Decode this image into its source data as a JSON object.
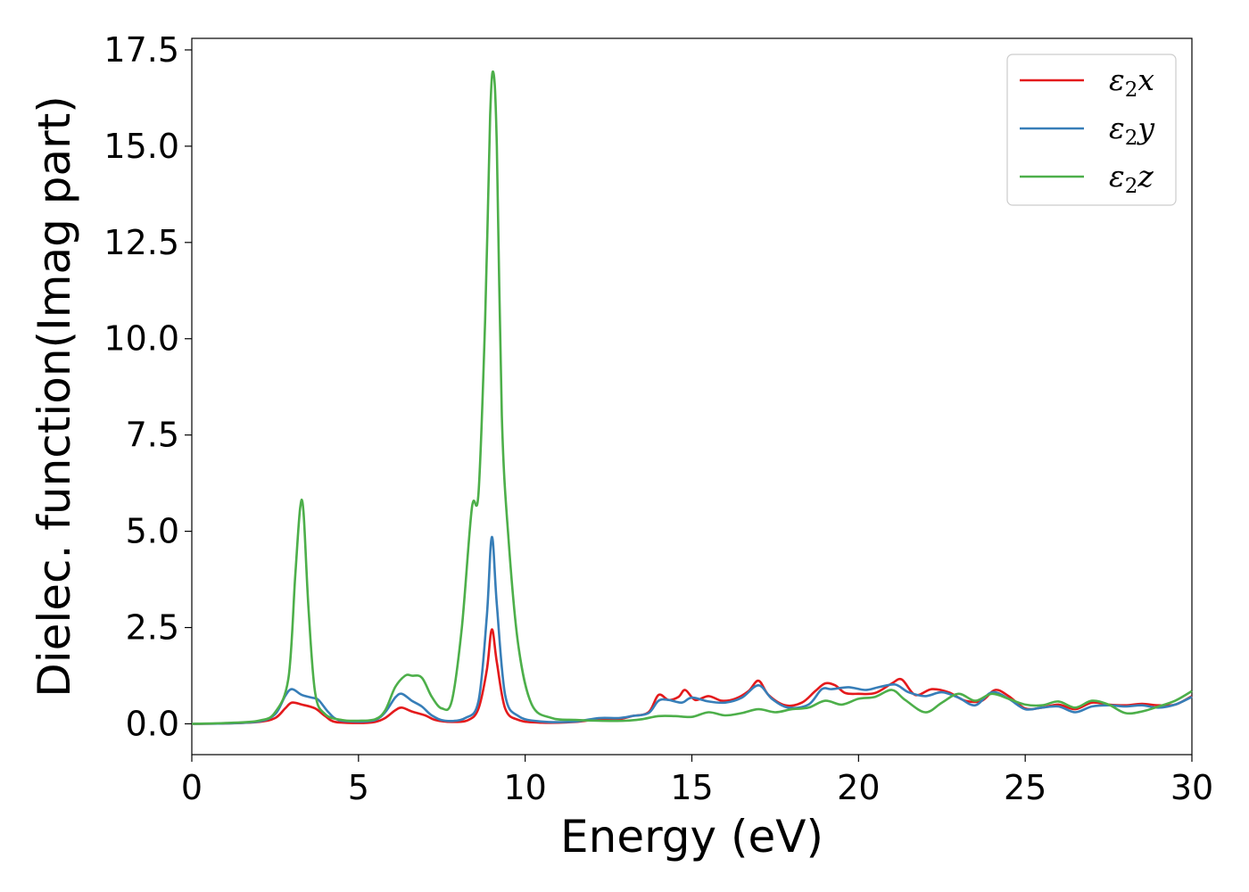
{
  "chart_data": {
    "type": "line",
    "title": "",
    "xlabel": "Energy (eV)",
    "ylabel": "Dielec. function(Imag part)",
    "xlim": [
      0,
      30
    ],
    "ylim": [
      -0.8,
      17.8
    ],
    "xticks": [
      0,
      5,
      10,
      15,
      20,
      25,
      30
    ],
    "xtick_labels": [
      "0",
      "5",
      "10",
      "15",
      "20",
      "25",
      "30"
    ],
    "yticks": [
      0,
      2.5,
      5,
      7.5,
      10,
      12.5,
      15,
      17.5
    ],
    "ytick_labels": [
      "0.0",
      "2.5",
      "5.0",
      "7.5",
      "10.0",
      "12.5",
      "15.0",
      "17.5"
    ],
    "grid": false,
    "legend_position": "top-right",
    "series": [
      {
        "name": "ε₂x",
        "sub": "2",
        "axis": "x",
        "color": "#e41a1c",
        "points": [
          [
            0,
            0
          ],
          [
            1,
            0.01
          ],
          [
            2,
            0.05
          ],
          [
            2.5,
            0.15
          ],
          [
            2.8,
            0.4
          ],
          [
            3.0,
            0.55
          ],
          [
            3.3,
            0.5
          ],
          [
            3.7,
            0.4
          ],
          [
            4.0,
            0.2
          ],
          [
            4.3,
            0.05
          ],
          [
            5,
            0.02
          ],
          [
            5.5,
            0.05
          ],
          [
            5.8,
            0.15
          ],
          [
            6.1,
            0.35
          ],
          [
            6.3,
            0.42
          ],
          [
            6.6,
            0.32
          ],
          [
            7.0,
            0.22
          ],
          [
            7.3,
            0.1
          ],
          [
            7.8,
            0.05
          ],
          [
            8.3,
            0.1
          ],
          [
            8.6,
            0.4
          ],
          [
            8.85,
            1.4
          ],
          [
            9.0,
            2.45
          ],
          [
            9.15,
            1.6
          ],
          [
            9.4,
            0.4
          ],
          [
            9.8,
            0.1
          ],
          [
            10.5,
            0.03
          ],
          [
            11.5,
            0.05
          ],
          [
            12.2,
            0.12
          ],
          [
            12.8,
            0.12
          ],
          [
            13.2,
            0.2
          ],
          [
            13.7,
            0.3
          ],
          [
            14.0,
            0.75
          ],
          [
            14.3,
            0.62
          ],
          [
            14.6,
            0.7
          ],
          [
            14.8,
            0.88
          ],
          [
            15.1,
            0.62
          ],
          [
            15.5,
            0.72
          ],
          [
            15.9,
            0.6
          ],
          [
            16.3,
            0.65
          ],
          [
            16.7,
            0.85
          ],
          [
            17.0,
            1.12
          ],
          [
            17.3,
            0.75
          ],
          [
            17.8,
            0.48
          ],
          [
            18.3,
            0.55
          ],
          [
            18.7,
            0.85
          ],
          [
            19.0,
            1.05
          ],
          [
            19.3,
            1.0
          ],
          [
            19.6,
            0.8
          ],
          [
            20.0,
            0.78
          ],
          [
            20.5,
            0.8
          ],
          [
            21.0,
            1.05
          ],
          [
            21.3,
            1.15
          ],
          [
            21.7,
            0.75
          ],
          [
            22.2,
            0.9
          ],
          [
            22.7,
            0.82
          ],
          [
            23.2,
            0.6
          ],
          [
            23.7,
            0.6
          ],
          [
            24.1,
            0.88
          ],
          [
            24.5,
            0.72
          ],
          [
            25.0,
            0.4
          ],
          [
            25.5,
            0.42
          ],
          [
            26.0,
            0.5
          ],
          [
            26.5,
            0.38
          ],
          [
            27.0,
            0.55
          ],
          [
            27.5,
            0.5
          ],
          [
            28.0,
            0.48
          ],
          [
            28.5,
            0.52
          ],
          [
            29.0,
            0.48
          ],
          [
            29.5,
            0.5
          ],
          [
            30,
            0.72
          ]
        ]
      },
      {
        "name": "ε₂y",
        "sub": "2",
        "axis": "y",
        "color": "#377eb8",
        "points": [
          [
            0,
            0
          ],
          [
            1,
            0.01
          ],
          [
            2,
            0.06
          ],
          [
            2.5,
            0.25
          ],
          [
            2.8,
            0.72
          ],
          [
            3.0,
            0.9
          ],
          [
            3.3,
            0.75
          ],
          [
            3.6,
            0.68
          ],
          [
            3.8,
            0.62
          ],
          [
            4.1,
            0.3
          ],
          [
            4.4,
            0.1
          ],
          [
            5,
            0.06
          ],
          [
            5.5,
            0.1
          ],
          [
            5.8,
            0.3
          ],
          [
            6.1,
            0.68
          ],
          [
            6.3,
            0.78
          ],
          [
            6.6,
            0.6
          ],
          [
            6.9,
            0.45
          ],
          [
            7.2,
            0.22
          ],
          [
            7.6,
            0.08
          ],
          [
            8.2,
            0.15
          ],
          [
            8.6,
            0.6
          ],
          [
            8.85,
            2.8
          ],
          [
            9.0,
            4.85
          ],
          [
            9.15,
            3.1
          ],
          [
            9.4,
            0.75
          ],
          [
            9.8,
            0.2
          ],
          [
            10.5,
            0.06
          ],
          [
            11.5,
            0.06
          ],
          [
            12.2,
            0.15
          ],
          [
            12.8,
            0.15
          ],
          [
            13.2,
            0.2
          ],
          [
            13.7,
            0.28
          ],
          [
            14.0,
            0.6
          ],
          [
            14.3,
            0.62
          ],
          [
            14.7,
            0.55
          ],
          [
            15.0,
            0.68
          ],
          [
            15.5,
            0.58
          ],
          [
            16.0,
            0.55
          ],
          [
            16.5,
            0.68
          ],
          [
            17.0,
            1.0
          ],
          [
            17.4,
            0.65
          ],
          [
            17.9,
            0.42
          ],
          [
            18.5,
            0.5
          ],
          [
            18.9,
            0.9
          ],
          [
            19.2,
            0.9
          ],
          [
            19.7,
            0.95
          ],
          [
            20.2,
            0.88
          ],
          [
            20.6,
            0.95
          ],
          [
            21.1,
            1.02
          ],
          [
            21.5,
            0.82
          ],
          [
            22.0,
            0.72
          ],
          [
            22.5,
            0.82
          ],
          [
            23.0,
            0.68
          ],
          [
            23.5,
            0.48
          ],
          [
            24.0,
            0.82
          ],
          [
            24.5,
            0.65
          ],
          [
            25.0,
            0.38
          ],
          [
            25.5,
            0.42
          ],
          [
            26.0,
            0.45
          ],
          [
            26.5,
            0.3
          ],
          [
            27.0,
            0.45
          ],
          [
            27.5,
            0.48
          ],
          [
            28.0,
            0.45
          ],
          [
            28.5,
            0.48
          ],
          [
            29.0,
            0.42
          ],
          [
            29.5,
            0.5
          ],
          [
            30,
            0.7
          ]
        ]
      },
      {
        "name": "ε₂z",
        "sub": "2",
        "axis": "z",
        "color": "#4daf4a",
        "points": [
          [
            0,
            0
          ],
          [
            1,
            0.02
          ],
          [
            2,
            0.08
          ],
          [
            2.5,
            0.3
          ],
          [
            2.9,
            1.2
          ],
          [
            3.1,
            3.8
          ],
          [
            3.25,
            5.6
          ],
          [
            3.35,
            5.5
          ],
          [
            3.5,
            3.0
          ],
          [
            3.7,
            0.8
          ],
          [
            4.0,
            0.25
          ],
          [
            4.5,
            0.1
          ],
          [
            5,
            0.08
          ],
          [
            5.5,
            0.12
          ],
          [
            5.8,
            0.35
          ],
          [
            6.1,
            0.95
          ],
          [
            6.4,
            1.25
          ],
          [
            6.6,
            1.25
          ],
          [
            6.9,
            1.2
          ],
          [
            7.2,
            0.7
          ],
          [
            7.5,
            0.4
          ],
          [
            7.8,
            0.6
          ],
          [
            8.1,
            2.5
          ],
          [
            8.4,
            5.6
          ],
          [
            8.6,
            6.0
          ],
          [
            8.8,
            10.5
          ],
          [
            8.95,
            15.8
          ],
          [
            9.05,
            16.9
          ],
          [
            9.15,
            15.0
          ],
          [
            9.3,
            8.0
          ],
          [
            9.5,
            4.8
          ],
          [
            9.8,
            2.0
          ],
          [
            10.2,
            0.5
          ],
          [
            10.8,
            0.15
          ],
          [
            11.5,
            0.1
          ],
          [
            12.2,
            0.08
          ],
          [
            13.0,
            0.08
          ],
          [
            13.5,
            0.12
          ],
          [
            14.0,
            0.2
          ],
          [
            14.5,
            0.2
          ],
          [
            15.0,
            0.18
          ],
          [
            15.5,
            0.3
          ],
          [
            16.0,
            0.22
          ],
          [
            16.5,
            0.28
          ],
          [
            17.0,
            0.38
          ],
          [
            17.5,
            0.3
          ],
          [
            18.0,
            0.38
          ],
          [
            18.5,
            0.42
          ],
          [
            19.0,
            0.6
          ],
          [
            19.5,
            0.5
          ],
          [
            20.0,
            0.65
          ],
          [
            20.5,
            0.7
          ],
          [
            21.0,
            0.88
          ],
          [
            21.4,
            0.62
          ],
          [
            22.0,
            0.3
          ],
          [
            22.5,
            0.55
          ],
          [
            23.0,
            0.78
          ],
          [
            23.5,
            0.6
          ],
          [
            24.0,
            0.78
          ],
          [
            24.5,
            0.65
          ],
          [
            25.0,
            0.5
          ],
          [
            25.5,
            0.48
          ],
          [
            26.0,
            0.58
          ],
          [
            26.5,
            0.42
          ],
          [
            27.0,
            0.6
          ],
          [
            27.5,
            0.5
          ],
          [
            28.0,
            0.28
          ],
          [
            28.5,
            0.32
          ],
          [
            29.0,
            0.45
          ],
          [
            29.5,
            0.6
          ],
          [
            30,
            0.85
          ]
        ]
      }
    ]
  }
}
